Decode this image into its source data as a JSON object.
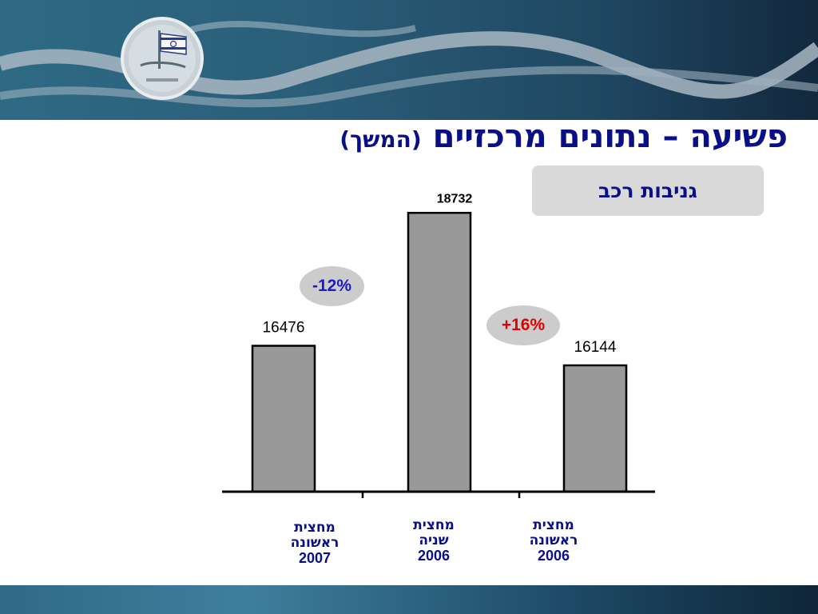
{
  "title": {
    "main": "פשיעה – נתונים מרכזיים",
    "sub": "(המשך)"
  },
  "category_tag": "גניבות רכב",
  "changes": {
    "left": "-12%",
    "right": "+16%"
  },
  "colors": {
    "title": "#0b0f86",
    "bar_fill": "#999999",
    "decrease": "#1a1ac8",
    "increase": "#e00000"
  },
  "chart_data": {
    "type": "bar",
    "categories": [
      {
        "line1": "מחצית",
        "line2": "ראשונה",
        "line3": "2007"
      },
      {
        "line1": "מחצית",
        "line2": "שניה",
        "line3": "2006"
      },
      {
        "line1": "מחצית",
        "line2": "ראשונה",
        "line3": "2006"
      }
    ],
    "values": [
      16476,
      18732,
      16144
    ],
    "value_labels": [
      "16476",
      "18732",
      "16144"
    ],
    "ylim": [
      14000,
      19000
    ],
    "grid": false,
    "legend": "none"
  }
}
